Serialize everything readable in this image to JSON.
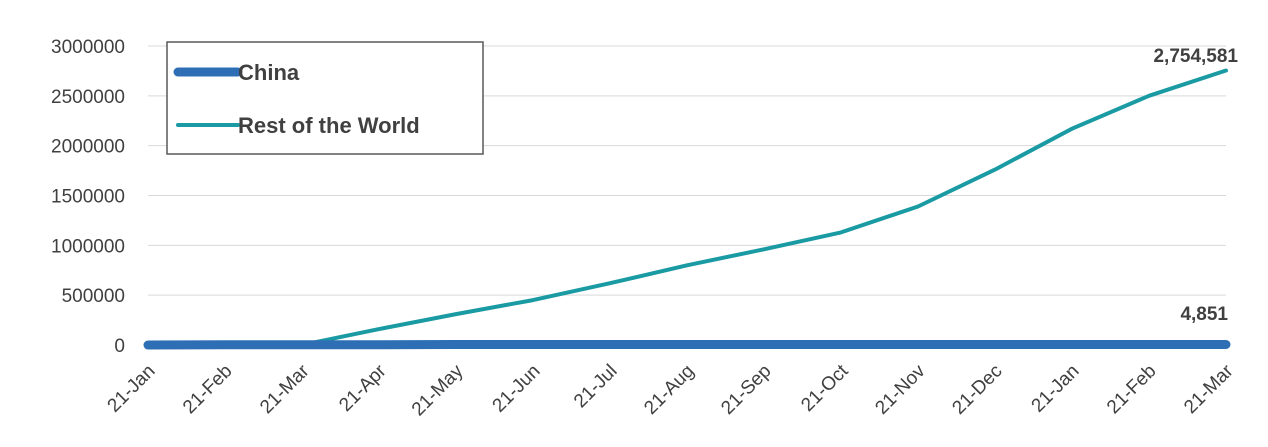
{
  "chart_data": {
    "type": "line",
    "title": "",
    "xlabel": "",
    "ylabel": "",
    "ylim": [
      0,
      3000000
    ],
    "yticks": [
      "0",
      "500000",
      "1000000",
      "1500000",
      "2000000",
      "2500000",
      "3000000"
    ],
    "categories": [
      "21-Jan",
      "21-Feb",
      "21-Mar",
      "21-Apr",
      "21-May",
      "21-Jun",
      "21-Jul",
      "21-Aug",
      "21-Sep",
      "21-Oct",
      "21-Nov",
      "21-Dec",
      "21-Jan",
      "21-Feb",
      "21-Mar"
    ],
    "grid": "horizontal",
    "legend": "top-left",
    "series": [
      {
        "name": "China",
        "color": "#2E6EB5",
        "values": [
          0,
          2000,
          3300,
          3340,
          4630,
          4640,
          4640,
          4650,
          4700,
          4730,
          4740,
          4770,
          4780,
          4830,
          4851
        ],
        "end_label": "4,851"
      },
      {
        "name": "Rest of the World",
        "color": "#1A9BA3",
        "values": [
          0,
          10,
          1000,
          160000,
          310000,
          450000,
          620000,
          800000,
          960000,
          1130000,
          1390000,
          1760000,
          2170000,
          2500000,
          2754581
        ],
        "end_label": "2,754,581"
      }
    ]
  }
}
